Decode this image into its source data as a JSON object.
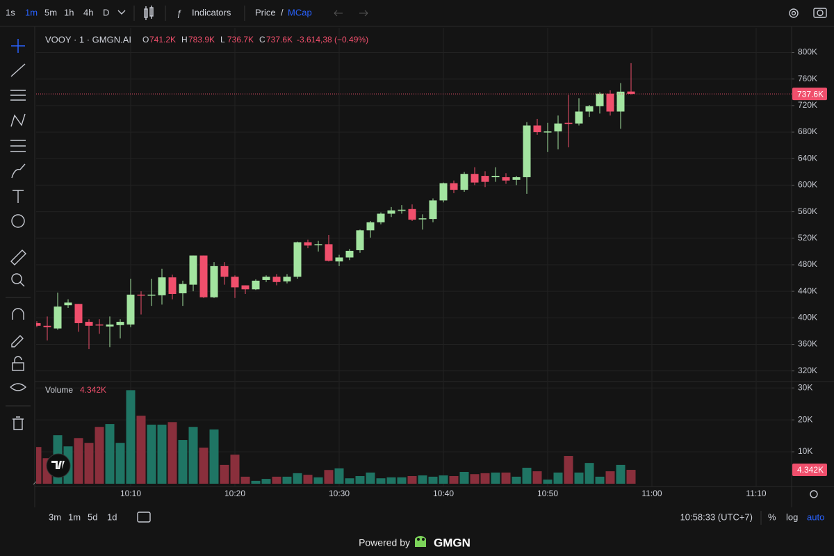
{
  "toolbar": {
    "intervals": [
      "1s",
      "1m",
      "5m",
      "1h",
      "4h",
      "D"
    ],
    "active_interval": "1m",
    "indicators": "Indicators",
    "price": "Price",
    "separator": "/",
    "mcap": "MCap"
  },
  "bottom_bar": {
    "ranges": [
      "3m",
      "1m",
      "5d",
      "1d"
    ],
    "clock": "10:58:33 (UTC+7)",
    "percent": "%",
    "log": "log",
    "auto": "auto"
  },
  "footer": {
    "powered_by": "Powered by",
    "brand": "GMGN"
  },
  "chart_data": [
    {
      "type": "candlestick",
      "title": "VOOY · 1 · GMGN.AI",
      "ohlc_legend": [
        {
          "key": "O",
          "value": "741.2K"
        },
        {
          "key": "H",
          "value": "783.9K"
        },
        {
          "key": "L",
          "value": "736.7K"
        },
        {
          "key": "C",
          "value": "737.6K"
        }
      ],
      "change": "-3.614,38 (−0.49%)",
      "x": [
        "10:01",
        "10:02",
        "10:03",
        "10:04",
        "10:05",
        "10:06",
        "10:07",
        "10:08",
        "10:09",
        "10:10",
        "10:11",
        "10:12",
        "10:13",
        "10:14",
        "10:15",
        "10:16",
        "10:17",
        "10:18",
        "10:19",
        "10:20",
        "10:21",
        "10:22",
        "10:23",
        "10:24",
        "10:25",
        "10:26",
        "10:27",
        "10:28",
        "10:29",
        "10:30",
        "10:31",
        "10:32",
        "10:33",
        "10:34",
        "10:35",
        "10:36",
        "10:37",
        "10:38",
        "10:39",
        "10:40",
        "10:41",
        "10:42",
        "10:43",
        "10:44",
        "10:45",
        "10:46",
        "10:47",
        "10:48",
        "10:49",
        "10:50",
        "10:51",
        "10:52",
        "10:53",
        "10:54",
        "10:55",
        "10:56",
        "10:57",
        "10:58"
      ],
      "open": [
        392,
        388,
        384,
        419,
        421,
        394,
        390,
        387,
        389,
        390,
        435,
        434,
        434,
        461,
        437,
        450,
        494,
        431,
        478,
        462,
        449,
        443,
        457,
        462,
        455,
        462,
        514,
        510,
        511,
        485,
        491,
        502,
        532,
        544,
        557,
        562,
        564,
        549,
        549,
        577,
        603,
        593,
        617,
        614,
        612,
        612,
        608,
        612,
        690,
        680,
        681,
        694,
        693,
        711,
        719,
        738,
        711,
        741.2
      ],
      "high": [
        395,
        402,
        438,
        428,
        421,
        398,
        398,
        402,
        398,
        459,
        440,
        459,
        474,
        465,
        456,
        494,
        494,
        484,
        484,
        464,
        449,
        458,
        464,
        466,
        466,
        515,
        518,
        516,
        525,
        495,
        504,
        533,
        546,
        559,
        567,
        570,
        571,
        556,
        580,
        604,
        607,
        620,
        627,
        621,
        627,
        618,
        614,
        695,
        700,
        694,
        705,
        736,
        731,
        721,
        740,
        743,
        754,
        783.9
      ],
      "low": [
        386,
        366,
        382,
        415,
        379,
        353,
        376,
        356,
        369,
        386,
        405,
        418,
        420,
        428,
        418,
        440,
        430,
        430,
        450,
        430,
        436,
        442,
        454,
        449,
        452,
        459,
        505,
        500,
        485,
        478,
        487,
        498,
        521,
        541,
        552,
        557,
        546,
        533,
        544,
        574,
        588,
        590,
        600,
        597,
        605,
        602,
        600,
        587,
        676,
        650,
        654,
        657,
        690,
        703,
        708,
        705,
        685,
        736.7
      ],
      "close": [
        388,
        386,
        417,
        423,
        392,
        388,
        389,
        390,
        394,
        435,
        434,
        435,
        461,
        436,
        451,
        494,
        431,
        478,
        462,
        446,
        443,
        456,
        462,
        454,
        462,
        514,
        509,
        511,
        486,
        491,
        501,
        532,
        544,
        557,
        562,
        563,
        548,
        550,
        577,
        603,
        593,
        617,
        604,
        605,
        614,
        607,
        612,
        690,
        680,
        681,
        693,
        693,
        711,
        719,
        738,
        711,
        741,
        737.6
      ],
      "last_price": {
        "value": 737.6,
        "label": "737.6K"
      },
      "up_color": "#a3e4a0",
      "down_color": "#f04f6c",
      "xlim": [
        "10:01",
        "11:13"
      ],
      "xticks": [
        "10:10",
        "10:20",
        "10:30",
        "10:40",
        "10:50",
        "11:00",
        "11:10"
      ],
      "ylim": [
        305,
        832
      ],
      "yticks": [
        {
          "value": 800,
          "label": "800K"
        },
        {
          "value": 760,
          "label": "760K"
        },
        {
          "value": 720,
          "label": "720K"
        },
        {
          "value": 680,
          "label": "680K"
        },
        {
          "value": 640,
          "label": "640K"
        },
        {
          "value": 600,
          "label": "600K"
        },
        {
          "value": 560,
          "label": "560K"
        },
        {
          "value": 520,
          "label": "520K"
        },
        {
          "value": 480,
          "label": "480K"
        },
        {
          "value": 440,
          "label": "440K"
        },
        {
          "value": 400,
          "label": "400K"
        },
        {
          "value": 360,
          "label": "360K"
        },
        {
          "value": 320,
          "label": "320K"
        }
      ],
      "grid": true
    },
    {
      "type": "bar",
      "title": "Volume",
      "last_label": "4.342K",
      "values": [
        11.5,
        8.0,
        15.2,
        11.7,
        14.3,
        12.8,
        17.8,
        18.7,
        12.8,
        29.3,
        21.3,
        18.5,
        18.5,
        19.3,
        13.7,
        17.8,
        11.3,
        17.0,
        5.9,
        9.1,
        2.2,
        0.9,
        1.5,
        2.2,
        2.2,
        3.3,
        2.8,
        2.0,
        4.3,
        4.8,
        1.7,
        2.4,
        3.5,
        1.7,
        2.0,
        2.0,
        2.4,
        2.6,
        2.2,
        2.6,
        2.4,
        3.7,
        3.0,
        3.3,
        3.5,
        3.5,
        2.2,
        5.0,
        3.9,
        1.3,
        3.5,
        8.7,
        3.5,
        6.5,
        2.2,
        3.9,
        5.9,
        4.342
      ],
      "up_color": "#1f7564",
      "down_color": "#8a2f3c",
      "ylim": [
        0,
        32
      ],
      "yticks": [
        {
          "value": 30,
          "label": "30K"
        },
        {
          "value": 20,
          "label": "20K"
        },
        {
          "value": 10,
          "label": "10K"
        }
      ],
      "grid": true
    }
  ]
}
